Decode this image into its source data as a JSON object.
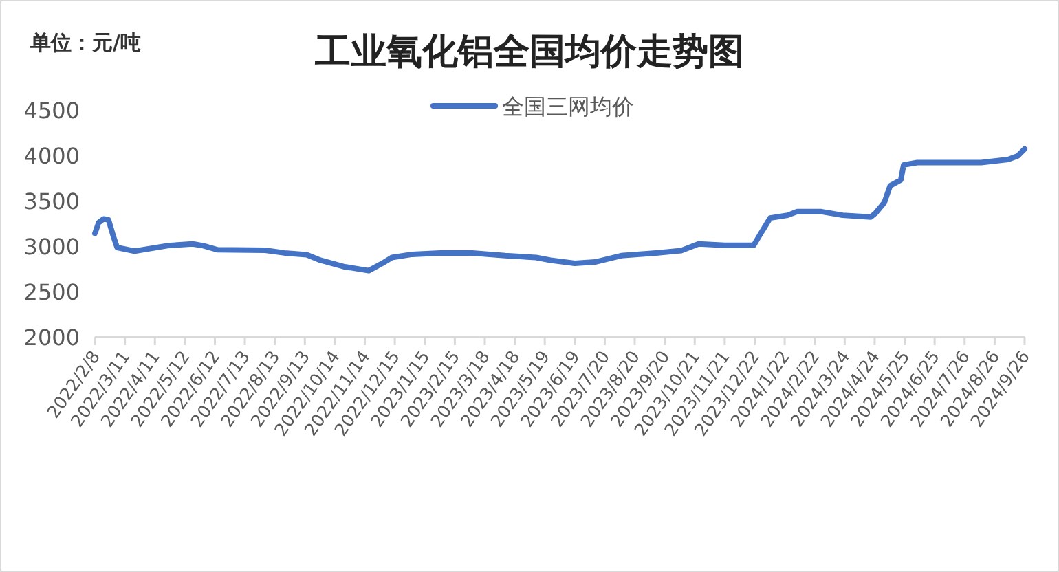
{
  "chart_data": {
    "type": "line",
    "title": "工业氧化铝全国均价走势图",
    "annotations": [
      "单位：元/吨"
    ],
    "x": [
      "2022-02-08",
      "2022-02-12",
      "2022-02-17",
      "2022-02-22",
      "2022-02-27",
      "2022-03-03",
      "2022-03-21",
      "2022-04-24",
      "2022-05-20",
      "2022-05-31",
      "2022-06-15",
      "2022-08-03",
      "2022-08-23",
      "2022-09-15",
      "2022-09-29",
      "2022-10-23",
      "2022-11-18",
      "2022-12-02",
      "2022-12-12",
      "2023-01-02",
      "2023-01-31",
      "2023-03-05",
      "2023-04-08",
      "2023-05-10",
      "2023-05-25",
      "2023-06-19",
      "2023-07-10",
      "2023-08-06",
      "2023-09-11",
      "2023-10-07",
      "2023-10-25",
      "2023-11-21",
      "2023-12-21",
      "2023-12-28",
      "2024-01-07",
      "2024-01-25",
      "2024-02-04",
      "2024-02-29",
      "2024-03-22",
      "2024-04-20",
      "2024-04-25",
      "2024-05-04",
      "2024-05-10",
      "2024-05-21",
      "2024-05-24",
      "2024-06-07",
      "2024-08-12",
      "2024-09-09",
      "2024-09-19",
      "2024-09-26"
    ],
    "series": [
      {
        "name": "全国三网均价",
        "color": "#4472c4",
        "values": [
          3140,
          3260,
          3300,
          3290,
          3110,
          2985,
          2945,
          3005,
          3025,
          3005,
          2960,
          2955,
          2925,
          2905,
          2845,
          2775,
          2730,
          2810,
          2875,
          2910,
          2925,
          2925,
          2895,
          2875,
          2845,
          2810,
          2825,
          2895,
          2925,
          2950,
          3025,
          3010,
          3010,
          3135,
          3310,
          3340,
          3380,
          3380,
          3340,
          3320,
          3365,
          3480,
          3665,
          3730,
          3895,
          3920,
          3920,
          3955,
          3995,
          4070
        ]
      }
    ],
    "xlim": [
      "2022-02-08",
      "2024-09-26"
    ],
    "xticks": [
      {
        "value": "2022-02-08",
        "label": "2022/2/8"
      },
      {
        "value": "2022-03-11",
        "label": "2022/3/11"
      },
      {
        "value": "2022-04-11",
        "label": "2022/4/11"
      },
      {
        "value": "2022-05-12",
        "label": "2022/5/12"
      },
      {
        "value": "2022-06-12",
        "label": "2022/6/12"
      },
      {
        "value": "2022-07-13",
        "label": "2022/7/13"
      },
      {
        "value": "2022-08-13",
        "label": "2022/8/13"
      },
      {
        "value": "2022-09-13",
        "label": "2022/9/13"
      },
      {
        "value": "2022-10-14",
        "label": "2022/10/14"
      },
      {
        "value": "2022-11-14",
        "label": "2022/11/14"
      },
      {
        "value": "2022-12-15",
        "label": "2022/12/15"
      },
      {
        "value": "2023-01-15",
        "label": "2023/1/15"
      },
      {
        "value": "2023-02-15",
        "label": "2023/2/15"
      },
      {
        "value": "2023-03-18",
        "label": "2023/3/18"
      },
      {
        "value": "2023-04-18",
        "label": "2023/4/18"
      },
      {
        "value": "2023-05-19",
        "label": "2023/5/19"
      },
      {
        "value": "2023-06-19",
        "label": "2023/6/19"
      },
      {
        "value": "2023-07-20",
        "label": "2023/7/20"
      },
      {
        "value": "2023-08-20",
        "label": "2023/8/20"
      },
      {
        "value": "2023-09-20",
        "label": "2023/9/20"
      },
      {
        "value": "2023-10-21",
        "label": "2023/10/21"
      },
      {
        "value": "2023-11-21",
        "label": "2023/11/21"
      },
      {
        "value": "2023-12-22",
        "label": "2023/12/22"
      },
      {
        "value": "2024-01-22",
        "label": "2024/1/22"
      },
      {
        "value": "2024-02-22",
        "label": "2024/2/22"
      },
      {
        "value": "2024-03-24",
        "label": "2024/3/24"
      },
      {
        "value": "2024-04-24",
        "label": "2024/4/24"
      },
      {
        "value": "2024-05-25",
        "label": "2024/5/25"
      },
      {
        "value": "2024-06-25",
        "label": "2024/6/25"
      },
      {
        "value": "2024-07-26",
        "label": "2024/7/26"
      },
      {
        "value": "2024-08-26",
        "label": "2024/8/26"
      },
      {
        "value": "2024-09-26",
        "label": "2024/9/26"
      }
    ],
    "ylim": [
      2000,
      4500
    ],
    "yticks": [
      2000,
      2500,
      3000,
      3500,
      4000,
      4500
    ],
    "grid": false,
    "legend": "top",
    "marker": "none",
    "line_style": "solid"
  }
}
